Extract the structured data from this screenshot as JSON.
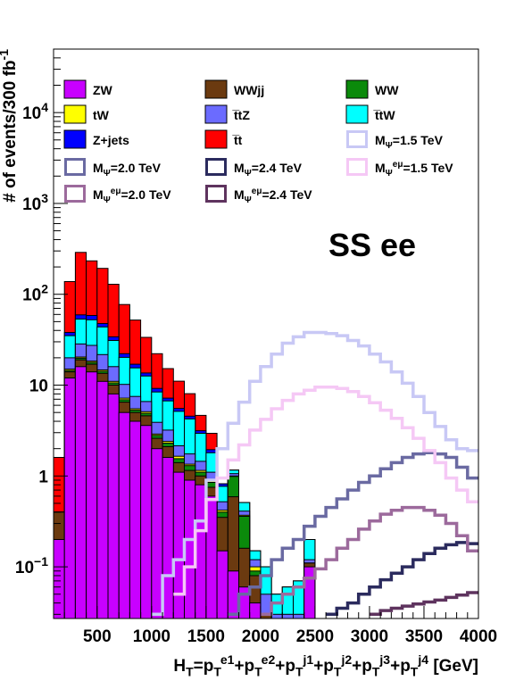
{
  "chart_data": {
    "type": "stacked-histogram",
    "channel_label": "SS ee",
    "xlabel": "H<sub>T</sub>=p<sub>T</sub><sup>e1</sup>+p<sub>T</sub><sup>e2</sup>+p<sub>T</sub><sup>j1</sup>+p<sub>T</sub><sup>j2</sup>+p<sub>T</sub><sup>j3</sup>+p<sub>T</sub><sup>j4</sup> [GeV]",
    "ylabel": "# of events/300 fb<sup>-1</sup>",
    "xlim": [
      100,
      4000
    ],
    "ylim": [
      0.027,
      50000
    ],
    "ylog": true,
    "bin_width": 100,
    "x_ticks": [
      "500",
      "1000",
      "1500",
      "2000",
      "2500",
      "3000",
      "3500",
      "4000"
    ],
    "y_ticks": [
      {
        "value": 0.1,
        "label": "10<sup>−1</sup>"
      },
      {
        "value": 1,
        "label": "1"
      },
      {
        "value": 10,
        "label": "10"
      },
      {
        "value": 100,
        "label": "10<sup>2</sup>"
      },
      {
        "value": 1000,
        "label": "10<sup>3</sup>"
      },
      {
        "value": 10000,
        "label": "10<sup>4</sup>"
      }
    ],
    "stack_bins_x": [
      150,
      250,
      350,
      450,
      550,
      650,
      750,
      850,
      950,
      1050,
      1150,
      1250,
      1350,
      1450,
      1550,
      1650,
      1750,
      1850,
      1950,
      2050,
      2150,
      2250,
      2350,
      2450
    ],
    "stack_series": [
      {
        "name": "ZW",
        "color": "#c800ff",
        "values": [
          0.2,
          12,
          16,
          14,
          11,
          8,
          5,
          4,
          3.6,
          2,
          1.6,
          1.1,
          0.9,
          0.8,
          0.6,
          0.15,
          0.09,
          0.06,
          0.04,
          0.02,
          0.01,
          0.01,
          0.01,
          0.1
        ]
      },
      {
        "name": "WWjj",
        "color": "#6b3a10",
        "values": [
          0.2,
          2,
          3,
          3,
          2.5,
          2,
          1.5,
          1,
          1,
          0.6,
          0.5,
          0.3,
          0.25,
          0.2,
          0.15,
          0.2,
          0.5,
          0.1,
          0.04,
          0.01,
          0.01,
          0.01,
          0.01,
          0.01
        ]
      },
      {
        "name": "WW",
        "color": "#0b8a0b",
        "values": [
          0,
          0.5,
          0.8,
          0.8,
          0.7,
          0.6,
          0.4,
          0.3,
          0.3,
          0.2,
          0.2,
          0.15,
          0.15,
          0.1,
          0.1,
          0.05,
          0.4,
          0.2,
          0.01,
          0,
          0,
          0,
          0,
          0
        ]
      },
      {
        "name": "tW",
        "color": "#ffff00",
        "values": [
          0,
          0.5,
          0.6,
          0.6,
          0.5,
          0.4,
          0.3,
          0.2,
          0.2,
          0.1,
          0.1,
          0.1,
          0.05,
          0.05,
          0.05,
          0.02,
          0.01,
          0.01,
          0.01,
          0,
          0,
          0,
          0,
          0
        ]
      },
      {
        "name": "t̅tZ",
        "color": "#6b6bff",
        "values": [
          0,
          5,
          8,
          9,
          7,
          5,
          3,
          2,
          1.5,
          1,
          0.8,
          0.5,
          0.4,
          0.3,
          0.2,
          0.1,
          0.06,
          0.04,
          0.02,
          0.02,
          0.01,
          0.01,
          0.01,
          0.01
        ]
      },
      {
        "name": "t̅tW",
        "color": "#00ffff",
        "values": [
          0,
          15,
          25,
          25,
          22,
          15,
          10,
          8,
          6,
          4.5,
          3.5,
          3,
          2.5,
          1.5,
          0.7,
          0.25,
          0.1,
          0.1,
          0.03,
          0.05,
          0.02,
          0.03,
          0.04,
          0.08
        ]
      },
      {
        "name": "Z+jets",
        "color": "#0000ff",
        "values": [
          0,
          3,
          6,
          6,
          4,
          3,
          2,
          1.5,
          1,
          0.8,
          0.5,
          0.4,
          0.3,
          0.2,
          0.15,
          0.05,
          0,
          0,
          0,
          0,
          0,
          0,
          0,
          0
        ]
      },
      {
        "name": "t̅t",
        "color": "#ff0000",
        "values": [
          1.2,
          100,
          230,
          175,
          145,
          95,
          55,
          35,
          20,
          13,
          8,
          5.5,
          3.5,
          1.5,
          1,
          0,
          0,
          0,
          0,
          0,
          0,
          0,
          0,
          0
        ]
      }
    ],
    "signal_x": [
      100,
      200,
      300,
      400,
      500,
      600,
      700,
      800,
      900,
      1000,
      1100,
      1200,
      1300,
      1400,
      1500,
      1600,
      1700,
      1800,
      1900,
      2000,
      2100,
      2200,
      2300,
      2400,
      2500,
      2600,
      2700,
      2800,
      2900,
      3000,
      3100,
      3200,
      3300,
      3400,
      3500,
      3600,
      3700,
      3800,
      3900
    ],
    "signal_series": [
      {
        "name": "M<sub>Ψ</sub>=1.5 TeV",
        "color": "#c8c8f5",
        "values": [
          0,
          0,
          0,
          0,
          0,
          0,
          0,
          0,
          0,
          0.03,
          0.08,
          0.12,
          0.2,
          0.32,
          0.9,
          2,
          3.8,
          6.5,
          11,
          16,
          22,
          29,
          34,
          38,
          38,
          37,
          35,
          31,
          27,
          22,
          18,
          14,
          10.5,
          7.5,
          5,
          3.5,
          2.5,
          2,
          1.9
        ]
      },
      {
        "name": "M<sub>Ψ</sub>=2.0 TeV",
        "color": "#6a6aa2",
        "values": [
          0,
          0,
          0,
          0,
          0,
          0,
          0,
          0,
          0,
          0,
          0,
          0,
          0,
          0,
          0,
          0,
          0.03,
          0.05,
          0.06,
          0.08,
          0.12,
          0.16,
          0.2,
          0.28,
          0.36,
          0.45,
          0.56,
          0.7,
          0.85,
          1.0,
          1.2,
          1.4,
          1.6,
          1.75,
          1.8,
          1.75,
          1.6,
          1.25,
          0.95
        ]
      },
      {
        "name": "M<sub>Ψ</sub>=2.4 TeV",
        "color": "#2b2b5e",
        "values": [
          0,
          0,
          0,
          0,
          0,
          0,
          0,
          0,
          0,
          0,
          0,
          0,
          0,
          0,
          0,
          0,
          0,
          0,
          0,
          0,
          0,
          0,
          0,
          0.02,
          0.025,
          0.03,
          0.035,
          0.04,
          0.05,
          0.06,
          0.072,
          0.085,
          0.1,
          0.12,
          0.14,
          0.16,
          0.175,
          0.185,
          0.18
        ]
      },
      {
        "name": "M<sub>Ψ</sub><sup>eμ</sup>=1.5 TeV",
        "color": "#f5c8f5",
        "values": [
          0,
          0,
          0,
          0,
          0,
          0,
          0,
          0,
          0,
          0,
          0.02,
          0.05,
          0.1,
          0.25,
          0.55,
          0.95,
          1.5,
          2.2,
          3.2,
          4.2,
          5.5,
          6.8,
          8,
          8.8,
          9.5,
          9.5,
          9.2,
          8.5,
          7.5,
          6.4,
          5.3,
          4.3,
          3.4,
          2.6,
          1.9,
          1.4,
          0.95,
          0.7,
          0.52
        ]
      },
      {
        "name": "M<sub>Ψ</sub><sup>eμ</sup>=2.0 TeV",
        "color": "#9c6a9c",
        "values": [
          0,
          0,
          0,
          0,
          0,
          0,
          0,
          0,
          0,
          0,
          0,
          0,
          0,
          0,
          0,
          0,
          0,
          0,
          0,
          0.03,
          0.04,
          0.05,
          0.06,
          0.075,
          0.095,
          0.12,
          0.16,
          0.2,
          0.26,
          0.32,
          0.38,
          0.42,
          0.45,
          0.45,
          0.42,
          0.37,
          0.3,
          0.22,
          0.15
        ]
      },
      {
        "name": "M<sub>Ψ</sub><sup>eμ</sup>=2.4 TeV",
        "color": "#5e335e",
        "values": [
          0,
          0,
          0,
          0,
          0,
          0,
          0,
          0,
          0,
          0,
          0,
          0,
          0,
          0,
          0,
          0,
          0,
          0,
          0,
          0,
          0,
          0,
          0,
          0,
          0,
          0,
          0,
          0,
          0,
          0.03,
          0.033,
          0.035,
          0.037,
          0.039,
          0.041,
          0.043,
          0.046,
          0.049,
          0.052
        ]
      }
    ],
    "legend": [
      {
        "label": "ZW",
        "color": "#c800ff",
        "kind": "fill"
      },
      {
        "label": "WWjj",
        "color": "#6b3a10",
        "kind": "fill"
      },
      {
        "label": "WW",
        "color": "#0b8a0b",
        "kind": "fill"
      },
      {
        "label": "tW",
        "color": "#ffff00",
        "kind": "fill"
      },
      {
        "label": "t̅tZ",
        "color": "#6b6bff",
        "kind": "fill"
      },
      {
        "label": "t̅tW",
        "color": "#00ffff",
        "kind": "fill"
      },
      {
        "label": "Z+jets",
        "color": "#0000ff",
        "kind": "fill"
      },
      {
        "label": "t̅t",
        "color": "#ff0000",
        "kind": "fill"
      },
      {
        "label": "M<sub>Ψ</sub>=1.5 TeV",
        "color": "#c8c8f5",
        "kind": "line"
      },
      {
        "label": "M<sub>Ψ</sub>=2.0 TeV",
        "color": "#6a6aa2",
        "kind": "line"
      },
      {
        "label": "M<sub>Ψ</sub>=2.4 TeV",
        "color": "#2b2b5e",
        "kind": "line"
      },
      {
        "label": "M<sub>Ψ</sub><sup>eμ</sup>=1.5 TeV",
        "color": "#f5c8f5",
        "kind": "line"
      },
      {
        "label": "M<sub>Ψ</sub><sup>eμ</sup>=2.0 TeV",
        "color": "#9c6a9c",
        "kind": "line"
      },
      {
        "label": "M<sub>Ψ</sub><sup>eμ</sup>=2.4 TeV",
        "color": "#5e335e",
        "kind": "line"
      }
    ],
    "legend_position": "top"
  }
}
